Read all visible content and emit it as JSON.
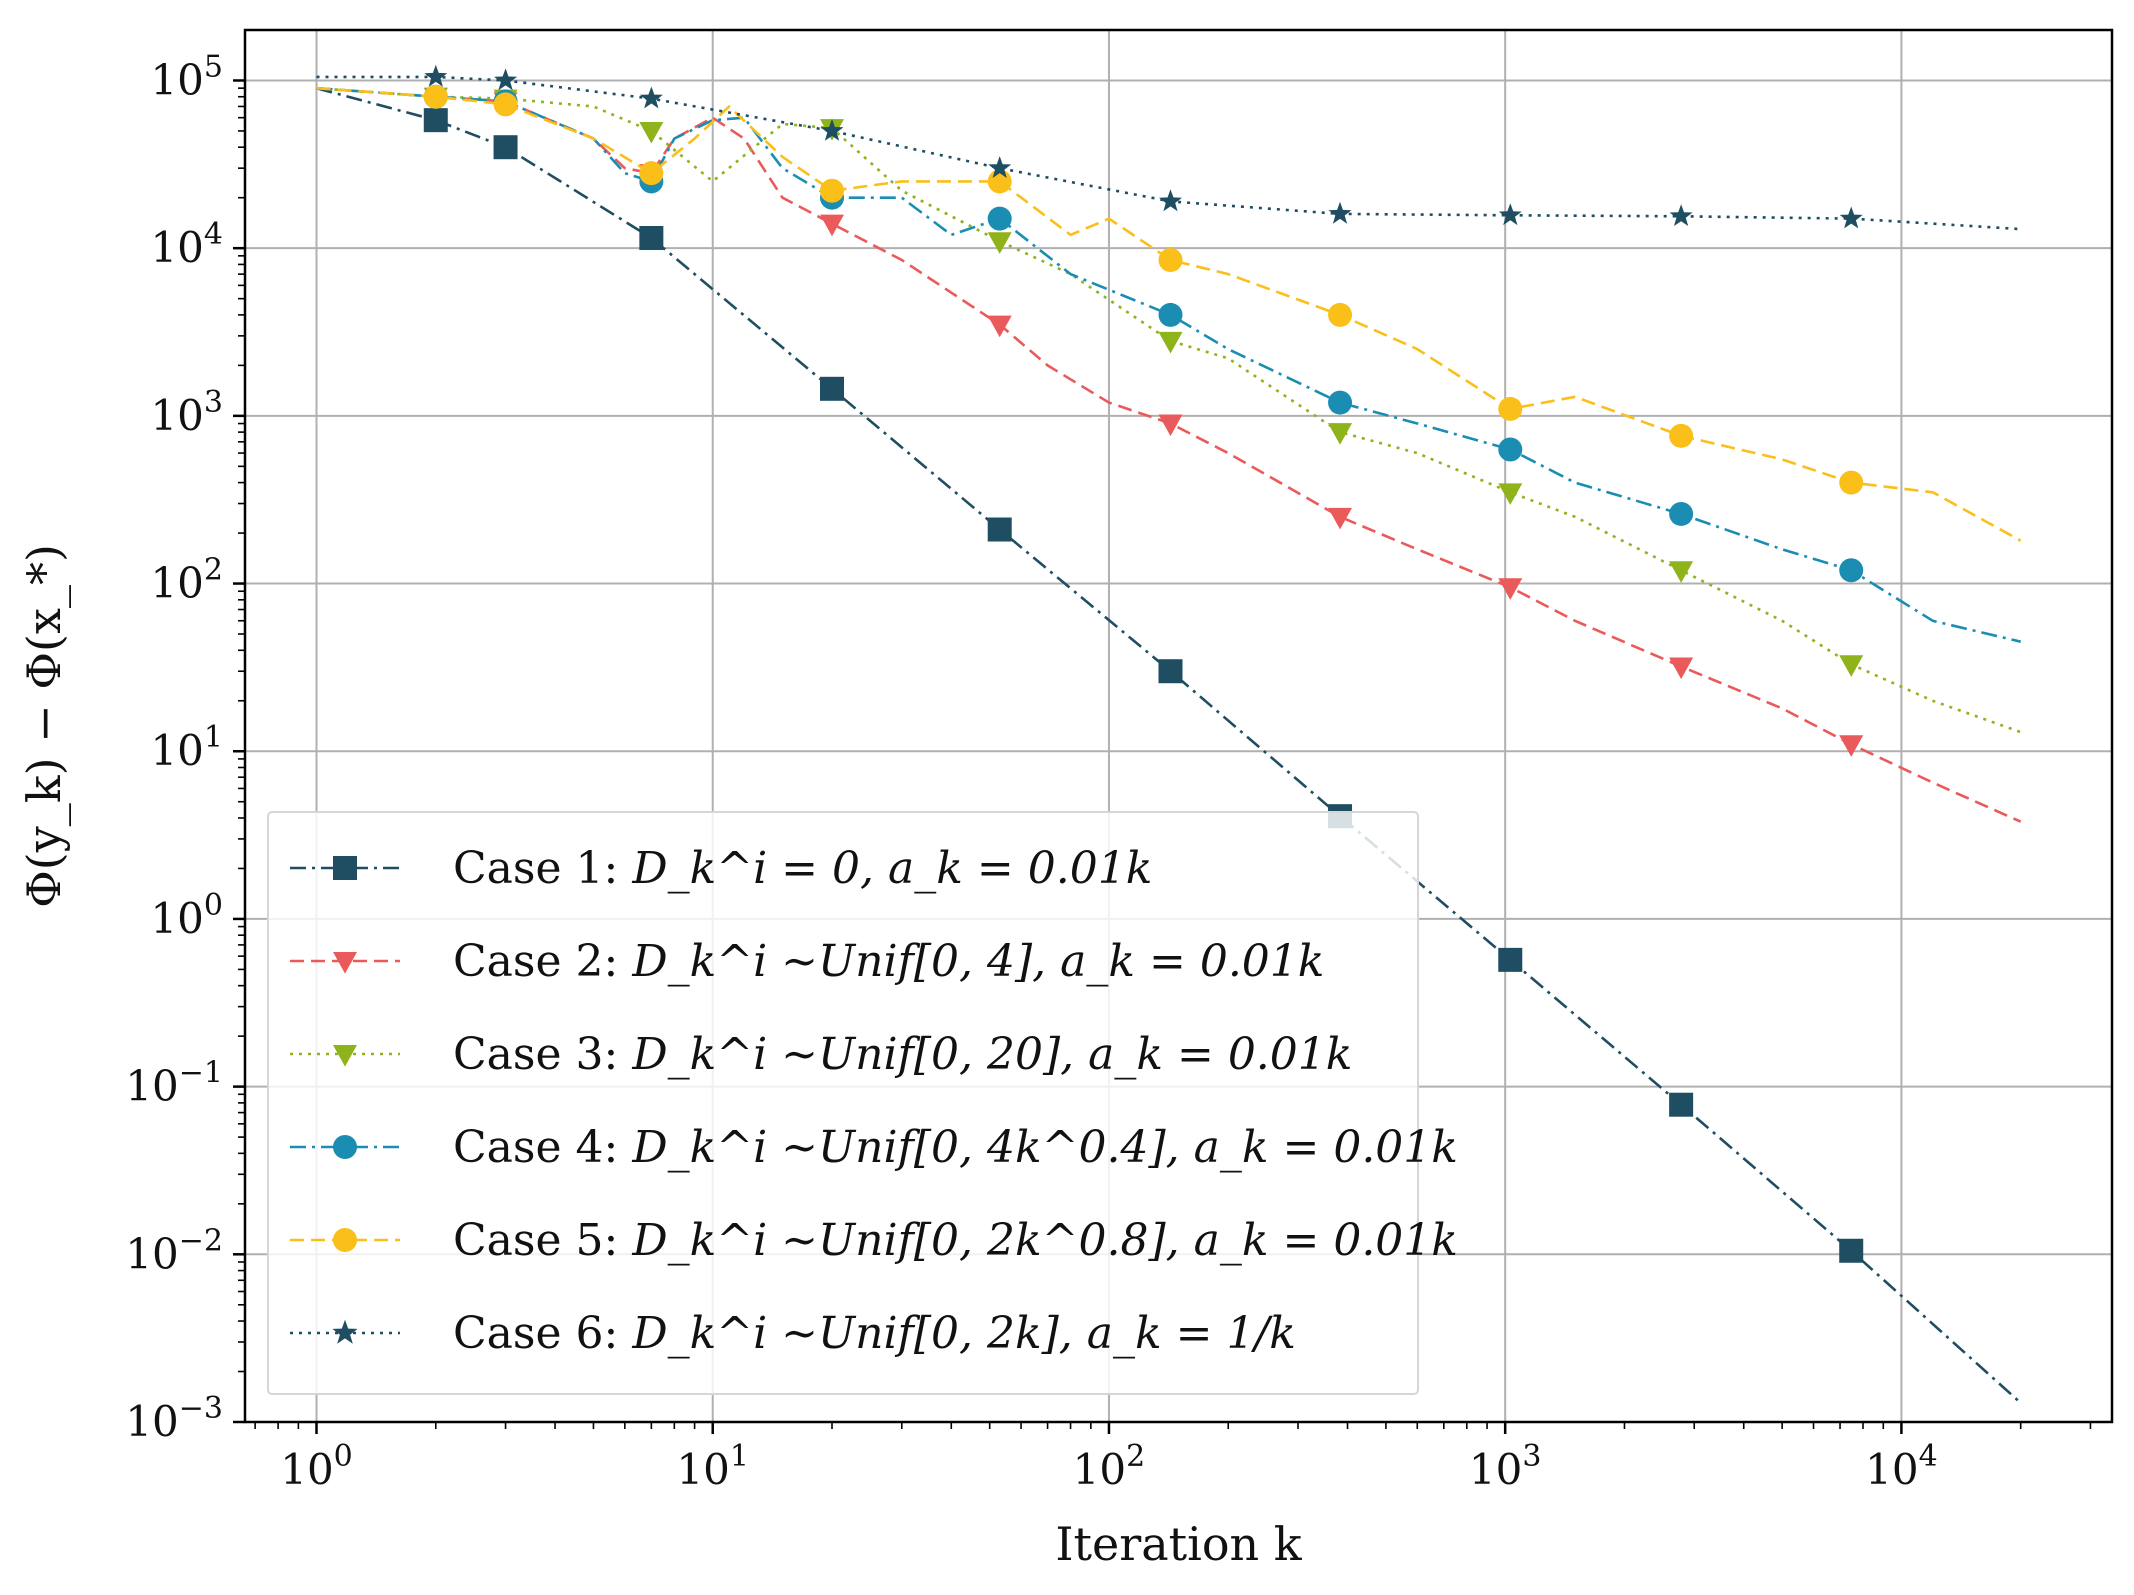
{
  "chart_data": {
    "type": "line",
    "title": "",
    "xlabel": "Iteration k",
    "ylabel": "Φ(y_k) − Φ(x_*)",
    "xscale": "log",
    "yscale": "log",
    "xlim": [
      0.66,
      34000
    ],
    "ylim": [
      0.001,
      200000
    ],
    "grid": true,
    "legend_position": "lower-left",
    "x_ticks": [
      {
        "value": 1,
        "base": "10",
        "exp": "0"
      },
      {
        "value": 10,
        "base": "10",
        "exp": "1"
      },
      {
        "value": 100,
        "base": "10",
        "exp": "2"
      },
      {
        "value": 1000,
        "base": "10",
        "exp": "3"
      },
      {
        "value": 10000,
        "base": "10",
        "exp": "4"
      }
    ],
    "y_ticks": [
      {
        "value": 0.001,
        "base": "10",
        "exp": "−3"
      },
      {
        "value": 0.01,
        "base": "10",
        "exp": "−2"
      },
      {
        "value": 0.1,
        "base": "10",
        "exp": "−1"
      },
      {
        "value": 1,
        "base": "10",
        "exp": "0"
      },
      {
        "value": 10,
        "base": "10",
        "exp": "1"
      },
      {
        "value": 100,
        "base": "10",
        "exp": "2"
      },
      {
        "value": 1000,
        "base": "10",
        "exp": "3"
      },
      {
        "value": 10000,
        "base": "10",
        "exp": "4"
      },
      {
        "value": 100000,
        "base": "10",
        "exp": "5"
      }
    ],
    "series": [
      {
        "name": "Case 1: D_k^i = 0, a_k = 0.01k",
        "label_prefix": "Case 1: ",
        "label_math": "D_k^i = 0, a_k = 0.01k",
        "color": "#1f4e63",
        "marker": "square",
        "dash": "dashdot",
        "points": [
          [
            1,
            90000
          ],
          [
            2,
            58000
          ],
          [
            3,
            40000
          ],
          [
            7,
            11500
          ],
          [
            20,
            1450
          ],
          [
            53,
            210
          ],
          [
            143,
            30
          ],
          [
            383,
            4.1
          ],
          [
            1030,
            0.57
          ],
          [
            2780,
            0.078
          ],
          [
            7470,
            0.0105
          ],
          [
            20000,
            0.0013
          ]
        ],
        "markers": [
          [
            2,
            58000
          ],
          [
            3,
            40000
          ],
          [
            7,
            11500
          ],
          [
            20,
            1450
          ],
          [
            53,
            210
          ],
          [
            143,
            30
          ],
          [
            383,
            4.1
          ],
          [
            1030,
            0.57
          ],
          [
            2780,
            0.078
          ],
          [
            7470,
            0.0105
          ]
        ]
      },
      {
        "name": "Case 2: D_k^i ~Unif[0, 4], a_k = 0.01k",
        "label_prefix": "Case 2: ",
        "label_math": "D_k^i ~Unif[0, 4], a_k = 0.01k",
        "color": "#eb5a5a",
        "marker": "triangle-down",
        "dash": "dashed",
        "points": [
          [
            1,
            90000
          ],
          [
            2,
            80000
          ],
          [
            3,
            75000
          ],
          [
            5,
            45000
          ],
          [
            6,
            30000
          ],
          [
            7,
            28000
          ],
          [
            8,
            45000
          ],
          [
            10,
            60000
          ],
          [
            12,
            45000
          ],
          [
            15,
            20000
          ],
          [
            20,
            14000
          ],
          [
            30,
            8500
          ],
          [
            53,
            3500
          ],
          [
            70,
            2000
          ],
          [
            100,
            1200
          ],
          [
            143,
            900
          ],
          [
            200,
            600
          ],
          [
            383,
            250
          ],
          [
            600,
            160
          ],
          [
            1030,
            95
          ],
          [
            1500,
            60
          ],
          [
            2780,
            32
          ],
          [
            5000,
            18
          ],
          [
            7470,
            11
          ],
          [
            12000,
            6.5
          ],
          [
            20000,
            3.8
          ]
        ],
        "markers": [
          [
            2,
            80000
          ],
          [
            3,
            75000
          ],
          [
            7,
            28000
          ],
          [
            20,
            14000
          ],
          [
            53,
            3500
          ],
          [
            143,
            900
          ],
          [
            383,
            250
          ],
          [
            1030,
            95
          ],
          [
            2780,
            32
          ],
          [
            7470,
            11
          ]
        ]
      },
      {
        "name": "Case 3: D_k^i ~Unif[0, 20], a_k = 0.01k",
        "label_prefix": "Case 3: ",
        "label_math": "D_k^i ~Unif[0, 20], a_k = 0.01k",
        "color": "#8fb31a",
        "marker": "triangle-down",
        "dash": "dotted",
        "points": [
          [
            1,
            90000
          ],
          [
            2,
            80000
          ],
          [
            3,
            78000
          ],
          [
            5,
            70000
          ],
          [
            7,
            50000
          ],
          [
            10,
            25000
          ],
          [
            15,
            55000
          ],
          [
            20,
            52000
          ],
          [
            30,
            22000
          ],
          [
            53,
            11000
          ],
          [
            80,
            7000
          ],
          [
            143,
            2800
          ],
          [
            200,
            2200
          ],
          [
            383,
            800
          ],
          [
            600,
            600
          ],
          [
            1030,
            350
          ],
          [
            1500,
            250
          ],
          [
            2780,
            120
          ],
          [
            5000,
            60
          ],
          [
            7470,
            33
          ],
          [
            12000,
            20
          ],
          [
            20000,
            13
          ]
        ],
        "markers": [
          [
            2,
            80000
          ],
          [
            3,
            78000
          ],
          [
            7,
            50000
          ],
          [
            20,
            52000
          ],
          [
            53,
            11000
          ],
          [
            143,
            2800
          ],
          [
            383,
            800
          ],
          [
            1030,
            350
          ],
          [
            2780,
            120
          ],
          [
            7470,
            33
          ]
        ]
      },
      {
        "name": "Case 4: D_k^i ~Unif[0, 4k^0.4], a_k = 0.01k",
        "label_prefix": "Case 4: ",
        "label_math": "D_k^i ~Unif[0, 4k^0.4], a_k = 0.01k",
        "color": "#1b8db3",
        "marker": "circle",
        "dash": "dashdot",
        "points": [
          [
            1,
            90000
          ],
          [
            2,
            80000
          ],
          [
            3,
            75000
          ],
          [
            5,
            45000
          ],
          [
            6,
            28000
          ],
          [
            7,
            25000
          ],
          [
            8,
            45000
          ],
          [
            10,
            58000
          ],
          [
            12,
            60000
          ],
          [
            15,
            30000
          ],
          [
            20,
            20000
          ],
          [
            30,
            20000
          ],
          [
            40,
            12000
          ],
          [
            53,
            15000
          ],
          [
            80,
            7000
          ],
          [
            143,
            4000
          ],
          [
            200,
            2500
          ],
          [
            383,
            1200
          ],
          [
            600,
            900
          ],
          [
            1030,
            630
          ],
          [
            1500,
            400
          ],
          [
            2780,
            260
          ],
          [
            5000,
            160
          ],
          [
            7470,
            120
          ],
          [
            12000,
            60
          ],
          [
            20000,
            45
          ]
        ],
        "markers": [
          [
            2,
            80000
          ],
          [
            3,
            75000
          ],
          [
            7,
            25000
          ],
          [
            20,
            20000
          ],
          [
            53,
            15000
          ],
          [
            143,
            4000
          ],
          [
            383,
            1200
          ],
          [
            1030,
            630
          ],
          [
            2780,
            260
          ],
          [
            7470,
            120
          ]
        ]
      },
      {
        "name": "Case 5: D_k^i ~Unif[0, 2k^0.8], a_k = 0.01k",
        "label_prefix": "Case 5: ",
        "label_math": "D_k^i ~Unif[0, 2k^0.8], a_k = 0.01k",
        "color": "#fbbf1a",
        "marker": "circle",
        "dash": "dashed",
        "points": [
          [
            1,
            90000
          ],
          [
            2,
            80000
          ],
          [
            3,
            72000
          ],
          [
            5,
            45000
          ],
          [
            7,
            28000
          ],
          [
            9,
            45000
          ],
          [
            11,
            70000
          ],
          [
            15,
            35000
          ],
          [
            20,
            22000
          ],
          [
            30,
            25000
          ],
          [
            53,
            25000
          ],
          [
            80,
            12000
          ],
          [
            100,
            15000
          ],
          [
            143,
            8500
          ],
          [
            200,
            7000
          ],
          [
            383,
            4000
          ],
          [
            600,
            2500
          ],
          [
            1030,
            1100
          ],
          [
            1500,
            1300
          ],
          [
            2780,
            760
          ],
          [
            5000,
            550
          ],
          [
            7470,
            400
          ],
          [
            12000,
            350
          ],
          [
            20000,
            180
          ]
        ],
        "markers": [
          [
            2,
            80000
          ],
          [
            3,
            72000
          ],
          [
            7,
            28000
          ],
          [
            20,
            22000
          ],
          [
            53,
            25000
          ],
          [
            143,
            8500
          ],
          [
            383,
            4000
          ],
          [
            1030,
            1100
          ],
          [
            2780,
            760
          ],
          [
            7470,
            400
          ]
        ]
      },
      {
        "name": "Case 6: D_k^i ~Unif[0, 2k], a_k = 1/k",
        "label_prefix": "Case 6: ",
        "label_math": "D_k^i ~Unif[0, 2k], a_k = 1/k",
        "color": "#1f4e63",
        "marker": "star",
        "dash": "dotted",
        "points": [
          [
            1,
            105000
          ],
          [
            2,
            105000
          ],
          [
            3,
            100000
          ],
          [
            7,
            78000
          ],
          [
            20,
            50000
          ],
          [
            53,
            30000
          ],
          [
            143,
            19000
          ],
          [
            383,
            16000
          ],
          [
            1030,
            15700
          ],
          [
            2780,
            15500
          ],
          [
            7470,
            15000
          ],
          [
            20000,
            13000
          ]
        ],
        "markers": [
          [
            2,
            105000
          ],
          [
            3,
            100000
          ],
          [
            7,
            78000
          ],
          [
            20,
            50000
          ],
          [
            53,
            30000
          ],
          [
            143,
            19000
          ],
          [
            383,
            16000
          ],
          [
            1030,
            15700
          ],
          [
            2780,
            15500
          ],
          [
            7470,
            15000
          ]
        ]
      }
    ]
  }
}
